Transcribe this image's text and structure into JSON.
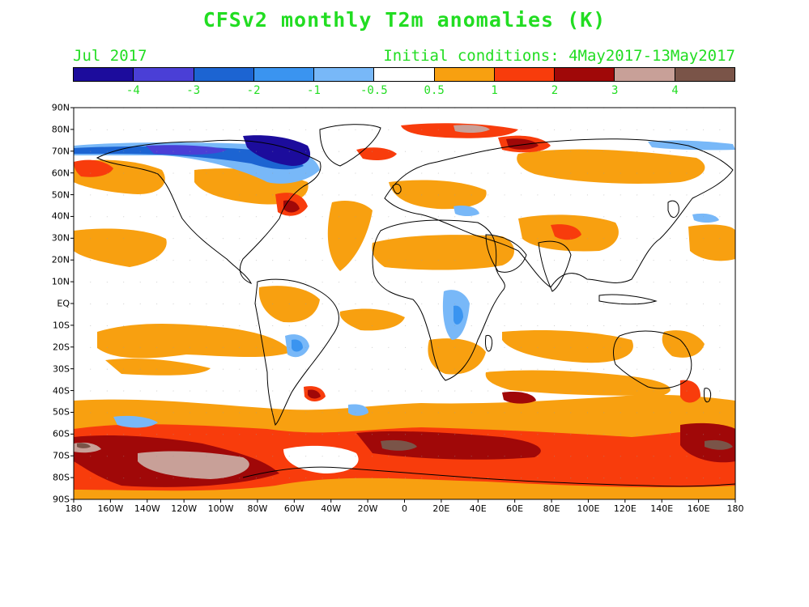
{
  "title": "CFSv2 monthly T2m anomalies (K)",
  "valid_month": "Jul 2017",
  "initial_conditions": "Initial conditions: 4May2017-13May2017",
  "colorbar": {
    "colors": [
      "#1c0c9c",
      "#4a3fd6",
      "#1c64d2",
      "#3a94f0",
      "#78b8f8",
      "#ffffff",
      "#f8a010",
      "#f83c0c",
      "#a00808",
      "#c8a098",
      "#7a5448"
    ],
    "labels": [
      "-4",
      "-3",
      "-2",
      "-1",
      "-0.5",
      "0.5",
      "1",
      "2",
      "3",
      "4"
    ]
  },
  "lat_labels": [
    "90N",
    "80N",
    "70N",
    "60N",
    "50N",
    "40N",
    "30N",
    "20N",
    "10N",
    "EQ",
    "10S",
    "20S",
    "30S",
    "40S",
    "50S",
    "60S",
    "70S",
    "80S",
    "90S"
  ],
  "lon_labels": [
    "180",
    "160W",
    "140W",
    "120W",
    "100W",
    "80W",
    "60W",
    "40W",
    "20W",
    "0",
    "20E",
    "40E",
    "60E",
    "80E",
    "100E",
    "120E",
    "140E",
    "160E",
    "180"
  ],
  "anomaly_regions": [
    {
      "name": "arctic-canada-cold",
      "color": "#1c0c9c"
    },
    {
      "name": "southern-ocean-warm-band",
      "color": "#f83c0c"
    },
    {
      "name": "tropical-ocean-warm",
      "color": "#f8a010"
    },
    {
      "name": "east-africa-cool",
      "color": "#3a94f0"
    }
  ]
}
